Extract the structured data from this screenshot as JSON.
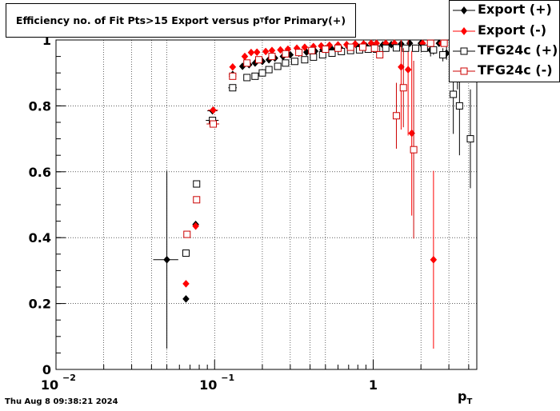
{
  "title": {
    "prefix": "Efficiency no. of Fit Pts>15 Export versus p",
    "sub": "T",
    "suffix": " for Primary(+)"
  },
  "timestamp": "Thu Aug  8 09:38:21 2024",
  "x_axis_title": {
    "main": "p",
    "sub": "T"
  },
  "chart_data": {
    "type": "scatter",
    "title": "Efficiency no. of Fit Pts>15 Export versus pT for Primary(+)",
    "xlabel": "pT",
    "ylabel": "",
    "xscale": "log",
    "xlim": [
      0.01,
      4.5
    ],
    "ylim": [
      0,
      1.0
    ],
    "grid": true,
    "legend_position": "top-right",
    "x_ticks": [
      {
        "value": 0.01,
        "base": "10",
        "exp": "−2"
      },
      {
        "value": 0.1,
        "base": "10",
        "exp": "−1"
      },
      {
        "value": 1,
        "base": "1",
        "exp": ""
      }
    ],
    "y_ticks": [
      {
        "value": 0,
        "label": "0"
      },
      {
        "value": 0.2,
        "label": "0.2"
      },
      {
        "value": 0.4,
        "label": "0.4"
      },
      {
        "value": 0.6,
        "label": "0.6"
      },
      {
        "value": 0.8,
        "label": "0.8"
      },
      {
        "value": 1.0,
        "label": "1"
      }
    ],
    "series": [
      {
        "name": "Export (+)",
        "color": "#000000",
        "marker": "diamond",
        "filled": true,
        "points": [
          {
            "x": 0.05,
            "y": 0.333,
            "ey": 0.27,
            "ex": 0.009
          },
          {
            "x": 0.066,
            "y": 0.214,
            "ey": 0.0,
            "ex": 0.0
          },
          {
            "x": 0.076,
            "y": 0.44,
            "ey": 0.0,
            "ex": 0.0
          },
          {
            "x": 0.097,
            "y": 0.785,
            "ey": 0.01,
            "ex": 0.007
          },
          {
            "x": 0.13,
            "y": 0.895,
            "ey": 0.0,
            "ex": 0.007
          },
          {
            "x": 0.15,
            "y": 0.92,
            "ey": 0.0,
            "ex": 0.006
          },
          {
            "x": 0.165,
            "y": 0.925,
            "ey": 0.0,
            "ex": 0.006
          },
          {
            "x": 0.18,
            "y": 0.93,
            "ey": 0.0,
            "ex": 0.006
          },
          {
            "x": 0.2,
            "y": 0.935,
            "ey": 0.0,
            "ex": 0.006
          },
          {
            "x": 0.22,
            "y": 0.94,
            "ey": 0.0,
            "ex": 0.006
          },
          {
            "x": 0.24,
            "y": 0.945,
            "ey": 0.0,
            "ex": 0.006
          },
          {
            "x": 0.27,
            "y": 0.95,
            "ey": 0.0,
            "ex": 0.006
          },
          {
            "x": 0.3,
            "y": 0.955,
            "ey": 0.0,
            "ex": 0.006
          },
          {
            "x": 0.34,
            "y": 0.96,
            "ey": 0.0,
            "ex": 0.006
          },
          {
            "x": 0.38,
            "y": 0.963,
            "ey": 0.0,
            "ex": 0.006
          },
          {
            "x": 0.43,
            "y": 0.966,
            "ey": 0.0,
            "ex": 0.006
          },
          {
            "x": 0.48,
            "y": 0.97,
            "ey": 0.0,
            "ex": 0.006
          },
          {
            "x": 0.55,
            "y": 0.972,
            "ey": 0.0,
            "ex": 0.006
          },
          {
            "x": 0.62,
            "y": 0.975,
            "ey": 0.0,
            "ex": 0.006
          },
          {
            "x": 0.7,
            "y": 0.978,
            "ey": 0.0,
            "ex": 0.006
          },
          {
            "x": 0.8,
            "y": 0.98,
            "ey": 0.0,
            "ex": 0.006
          },
          {
            "x": 0.9,
            "y": 0.982,
            "ey": 0.0,
            "ex": 0.006
          },
          {
            "x": 1.0,
            "y": 0.984,
            "ey": 0.0,
            "ex": 0.006
          },
          {
            "x": 1.15,
            "y": 0.985,
            "ey": 0.005,
            "ex": 0.006
          },
          {
            "x": 1.3,
            "y": 0.986,
            "ey": 0.005,
            "ex": 0.006
          },
          {
            "x": 1.5,
            "y": 0.988,
            "ey": 0.006,
            "ex": 0.006
          },
          {
            "x": 1.7,
            "y": 0.99,
            "ey": 0.006,
            "ex": 0.006
          },
          {
            "x": 2.0,
            "y": 0.99,
            "ey": 0.008,
            "ex": 0.006
          },
          {
            "x": 2.3,
            "y": 0.97,
            "ey": 0.02,
            "ex": 0.006
          },
          {
            "x": 2.6,
            "y": 0.99,
            "ey": 0.01,
            "ex": 0.006
          },
          {
            "x": 2.9,
            "y": 0.96,
            "ey": 0.02,
            "ex": 0.006
          },
          {
            "x": 3.4,
            "y": 0.9,
            "ey": 0.05,
            "ex": 0.006
          }
        ]
      },
      {
        "name": "Export (-)",
        "color": "#ff0000",
        "marker": "diamond",
        "filled": true,
        "points": [
          {
            "x": 0.066,
            "y": 0.26,
            "ey": 0.0,
            "ex": 0.0
          },
          {
            "x": 0.076,
            "y": 0.435,
            "ey": 0.0,
            "ex": 0.0
          },
          {
            "x": 0.098,
            "y": 0.787,
            "ey": 0.01,
            "ex": 0.007
          },
          {
            "x": 0.13,
            "y": 0.918,
            "ey": 0.0,
            "ex": 0.006
          },
          {
            "x": 0.155,
            "y": 0.95,
            "ey": 0.0,
            "ex": 0.006
          },
          {
            "x": 0.17,
            "y": 0.962,
            "ey": 0.0,
            "ex": 0.006
          },
          {
            "x": 0.185,
            "y": 0.963,
            "ey": 0.0,
            "ex": 0.006
          },
          {
            "x": 0.21,
            "y": 0.965,
            "ey": 0.0,
            "ex": 0.006
          },
          {
            "x": 0.23,
            "y": 0.968,
            "ey": 0.0,
            "ex": 0.006
          },
          {
            "x": 0.26,
            "y": 0.97,
            "ey": 0.0,
            "ex": 0.006
          },
          {
            "x": 0.29,
            "y": 0.972,
            "ey": 0.0,
            "ex": 0.006
          },
          {
            "x": 0.33,
            "y": 0.975,
            "ey": 0.0,
            "ex": 0.006
          },
          {
            "x": 0.37,
            "y": 0.978,
            "ey": 0.0,
            "ex": 0.006
          },
          {
            "x": 0.42,
            "y": 0.98,
            "ey": 0.0,
            "ex": 0.006
          },
          {
            "x": 0.47,
            "y": 0.982,
            "ey": 0.0,
            "ex": 0.006
          },
          {
            "x": 0.53,
            "y": 0.984,
            "ey": 0.0,
            "ex": 0.006
          },
          {
            "x": 0.6,
            "y": 0.985,
            "ey": 0.0,
            "ex": 0.006
          },
          {
            "x": 0.68,
            "y": 0.986,
            "ey": 0.0,
            "ex": 0.006
          },
          {
            "x": 0.77,
            "y": 0.988,
            "ey": 0.0,
            "ex": 0.006
          },
          {
            "x": 0.87,
            "y": 0.988,
            "ey": 0.0,
            "ex": 0.006
          },
          {
            "x": 0.97,
            "y": 0.99,
            "ey": 0.0,
            "ex": 0.006
          },
          {
            "x": 1.05,
            "y": 0.99,
            "ey": 0.006,
            "ex": 0.006
          },
          {
            "x": 1.2,
            "y": 0.99,
            "ey": 0.006,
            "ex": 0.006
          },
          {
            "x": 1.36,
            "y": 0.99,
            "ey": 0.008,
            "ex": 0.006
          },
          {
            "x": 1.5,
            "y": 0.918,
            "ey": 0.19,
            "ex": 0.0
          },
          {
            "x": 1.66,
            "y": 0.91,
            "ey": 0.2,
            "ex": 0.0
          },
          {
            "x": 1.75,
            "y": 0.717,
            "ey": 0.25,
            "ex": 0.0
          },
          {
            "x": 2.05,
            "y": 0.99,
            "ey": 0.01,
            "ex": 0.006
          },
          {
            "x": 2.4,
            "y": 0.333,
            "ey": 0.27,
            "ex": 0.0
          },
          {
            "x": 2.7,
            "y": 0.99,
            "ey": 0.01,
            "ex": 0.006
          }
        ]
      },
      {
        "name": "TFG24c (+)",
        "color": "#000000",
        "marker": "square",
        "filled": false,
        "points": [
          {
            "x": 0.066,
            "y": 0.353,
            "ey": 0.0,
            "ex": 0.0
          },
          {
            "x": 0.077,
            "y": 0.563,
            "ey": 0.0,
            "ex": 0.0
          },
          {
            "x": 0.097,
            "y": 0.756,
            "ey": 0.0,
            "ex": 0.009
          },
          {
            "x": 0.13,
            "y": 0.855,
            "ey": 0.0,
            "ex": 0.008
          },
          {
            "x": 0.16,
            "y": 0.886,
            "ey": 0.0,
            "ex": 0.007
          },
          {
            "x": 0.18,
            "y": 0.89,
            "ey": 0.0,
            "ex": 0.006
          },
          {
            "x": 0.2,
            "y": 0.9,
            "ey": 0.0,
            "ex": 0.006
          },
          {
            "x": 0.22,
            "y": 0.91,
            "ey": 0.0,
            "ex": 0.006
          },
          {
            "x": 0.25,
            "y": 0.92,
            "ey": 0.0,
            "ex": 0.006
          },
          {
            "x": 0.28,
            "y": 0.93,
            "ey": 0.0,
            "ex": 0.006
          },
          {
            "x": 0.32,
            "y": 0.935,
            "ey": 0.0,
            "ex": 0.006
          },
          {
            "x": 0.37,
            "y": 0.94,
            "ey": 0.0,
            "ex": 0.006
          },
          {
            "x": 0.42,
            "y": 0.948,
            "ey": 0.0,
            "ex": 0.006
          },
          {
            "x": 0.48,
            "y": 0.955,
            "ey": 0.0,
            "ex": 0.006
          },
          {
            "x": 0.55,
            "y": 0.96,
            "ey": 0.0,
            "ex": 0.006
          },
          {
            "x": 0.63,
            "y": 0.965,
            "ey": 0.0,
            "ex": 0.006
          },
          {
            "x": 0.72,
            "y": 0.968,
            "ey": 0.0,
            "ex": 0.006
          },
          {
            "x": 0.82,
            "y": 0.97,
            "ey": 0.0,
            "ex": 0.006
          },
          {
            "x": 0.93,
            "y": 0.972,
            "ey": 0.0,
            "ex": 0.006
          },
          {
            "x": 1.05,
            "y": 0.972,
            "ey": 0.0,
            "ex": 0.006
          },
          {
            "x": 1.2,
            "y": 0.975,
            "ey": 0.005,
            "ex": 0.006
          },
          {
            "x": 1.4,
            "y": 0.976,
            "ey": 0.006,
            "ex": 0.006
          },
          {
            "x": 1.6,
            "y": 0.975,
            "ey": 0.006,
            "ex": 0.006
          },
          {
            "x": 1.85,
            "y": 0.975,
            "ey": 0.008,
            "ex": 0.006
          },
          {
            "x": 2.1,
            "y": 0.975,
            "ey": 0.01,
            "ex": 0.006
          },
          {
            "x": 2.4,
            "y": 0.97,
            "ey": 0.015,
            "ex": 0.006
          },
          {
            "x": 2.75,
            "y": 0.955,
            "ey": 0.02,
            "ex": 0.006
          },
          {
            "x": 3.2,
            "y": 0.835,
            "ey": 0.12,
            "ex": 0.0
          },
          {
            "x": 3.5,
            "y": 0.8,
            "ey": 0.15,
            "ex": 0.0
          },
          {
            "x": 4.1,
            "y": 0.7,
            "ey": 0.15,
            "ex": 0.0
          }
        ]
      },
      {
        "name": "TFG24c (-)",
        "color": "#cc0000",
        "marker": "square",
        "filled": false,
        "points": [
          {
            "x": 0.067,
            "y": 0.41,
            "ey": 0.0,
            "ex": 0.0
          },
          {
            "x": 0.077,
            "y": 0.515,
            "ey": 0.0,
            "ex": 0.0
          },
          {
            "x": 0.098,
            "y": 0.745,
            "ey": 0.0,
            "ex": 0.009
          },
          {
            "x": 0.13,
            "y": 0.89,
            "ey": 0.0,
            "ex": 0.007
          },
          {
            "x": 0.16,
            "y": 0.93,
            "ey": 0.0,
            "ex": 0.006
          },
          {
            "x": 0.19,
            "y": 0.94,
            "ey": 0.0,
            "ex": 0.006
          },
          {
            "x": 0.23,
            "y": 0.95,
            "ey": 0.0,
            "ex": 0.006
          },
          {
            "x": 0.28,
            "y": 0.958,
            "ey": 0.0,
            "ex": 0.006
          },
          {
            "x": 0.34,
            "y": 0.962,
            "ey": 0.0,
            "ex": 0.006
          },
          {
            "x": 0.41,
            "y": 0.968,
            "ey": 0.0,
            "ex": 0.006
          },
          {
            "x": 0.5,
            "y": 0.972,
            "ey": 0.0,
            "ex": 0.006
          },
          {
            "x": 0.6,
            "y": 0.975,
            "ey": 0.0,
            "ex": 0.006
          },
          {
            "x": 0.72,
            "y": 0.978,
            "ey": 0.0,
            "ex": 0.006
          },
          {
            "x": 0.86,
            "y": 0.978,
            "ey": 0.0,
            "ex": 0.006
          },
          {
            "x": 1.02,
            "y": 0.975,
            "ey": 0.006,
            "ex": 0.006
          },
          {
            "x": 1.1,
            "y": 0.955,
            "ey": 0.01,
            "ex": 0.006
          },
          {
            "x": 1.4,
            "y": 0.77,
            "ey": 0.1,
            "ex": 0.0
          },
          {
            "x": 1.55,
            "y": 0.855,
            "ey": 0.12,
            "ex": 0.0
          },
          {
            "x": 1.8,
            "y": 0.667,
            "ey": 0.27,
            "ex": 0.0
          },
          {
            "x": 2.3,
            "y": 0.99,
            "ey": 0.01,
            "ex": 0.006
          },
          {
            "x": 2.8,
            "y": 0.99,
            "ey": 0.01,
            "ex": 0.006
          }
        ]
      }
    ]
  }
}
